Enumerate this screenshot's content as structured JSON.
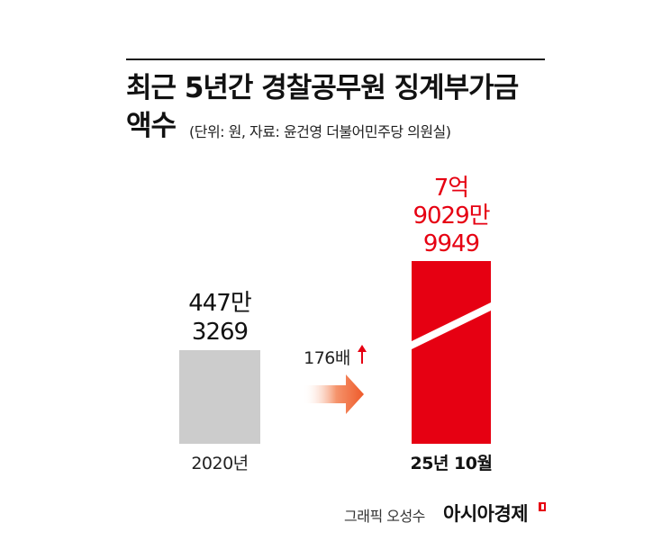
{
  "title_line1": "최근 5년간 경찰공무원 징계부가금",
  "title_line2": "액수",
  "subtitle": "(단위: 원, 자료: 윤건영 더불어민주당 의원실)",
  "credit": "그래픽 오성수",
  "brand": "아시아경제",
  "colors": {
    "bar_2020": "#cccccc",
    "bar_2025": "#e60012",
    "accent": "#e60012",
    "arrow": "#f06a3a"
  },
  "chart_data": {
    "type": "bar",
    "categories": [
      "2020년",
      "25년 10월"
    ],
    "values": [
      4473269,
      790299949
    ],
    "value_labels": [
      [
        "447만",
        "3269"
      ],
      [
        "7억",
        "9029만",
        "9949"
      ]
    ],
    "annotation": "176배",
    "annotation_icon": "up-arrow-icon",
    "scale": "broken"
  }
}
